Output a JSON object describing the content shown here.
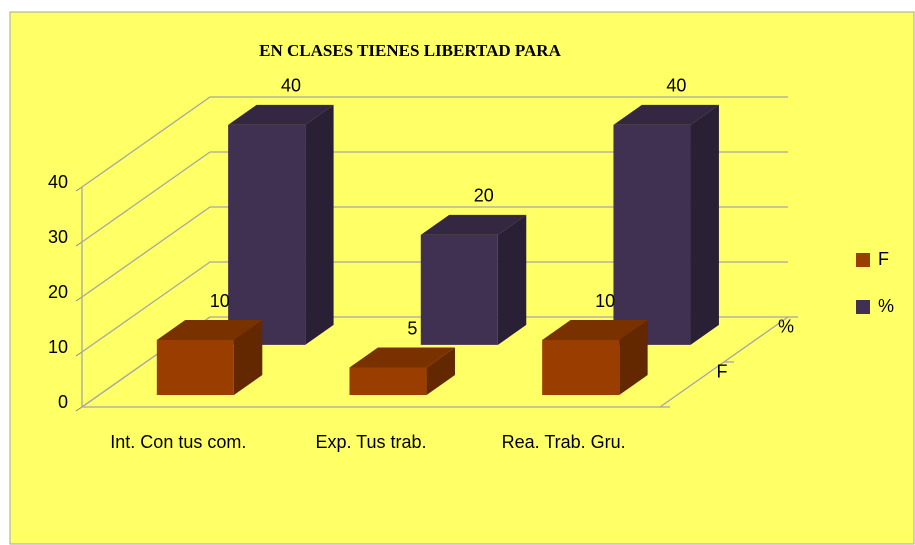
{
  "chart_data": {
    "type": "bar3d",
    "title": "EN CLASES TIENES LIBERTAD PARA",
    "categories": [
      "Int. Con tus com.",
      "Exp. Tus trab.",
      "Rea. Trab. Gru."
    ],
    "series": [
      {
        "name": "F",
        "color": "#993d00",
        "values": [
          10,
          5,
          10
        ]
      },
      {
        "name": "%",
        "color": "#403152",
        "values": [
          40,
          20,
          40
        ]
      }
    ],
    "ylim": [
      0,
      40
    ],
    "yticks": [
      0,
      10,
      20,
      30,
      40
    ],
    "grid": true,
    "legend": "right"
  }
}
